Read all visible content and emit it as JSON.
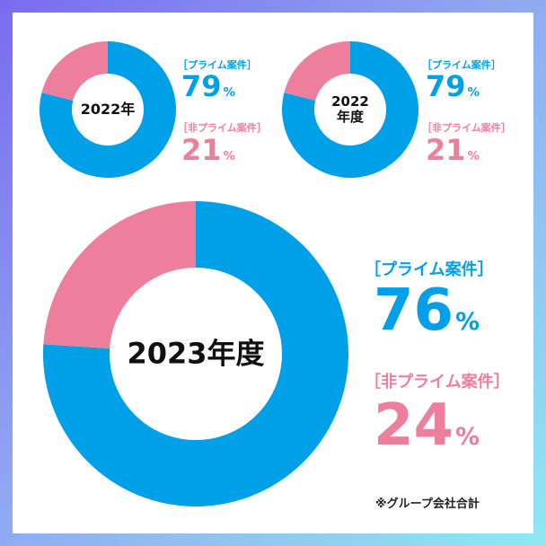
{
  "colors": {
    "prime": "#00a0e9",
    "non_prime": "#ee7f9c"
  },
  "chart_data": [
    {
      "type": "pie",
      "title": "2022年",
      "categories": [
        "プライム案件",
        "非プライム案件"
      ],
      "values": [
        79,
        21
      ],
      "colors": [
        "#00a0e9",
        "#ee7f9c"
      ]
    },
    {
      "type": "pie",
      "title": "2022年度",
      "categories": [
        "プライム案件",
        "非プライム案件"
      ],
      "values": [
        79,
        21
      ],
      "colors": [
        "#00a0e9",
        "#ee7f9c"
      ]
    },
    {
      "type": "pie",
      "title": "2023年度",
      "categories": [
        "プライム案件",
        "非プライム案件"
      ],
      "values": [
        76,
        24
      ],
      "colors": [
        "#00a0e9",
        "#ee7f9c"
      ]
    }
  ],
  "charts": [
    {
      "center_line1": "2022年",
      "center_line2": "",
      "prime_label": "［プライム案件］",
      "prime_value": "79",
      "prime_unit": "%",
      "non_prime_label": "［非プライム案件］",
      "non_prime_value": "21",
      "non_prime_unit": "%"
    },
    {
      "center_line1": "2022",
      "center_line2": "年度",
      "prime_label": "［プライム案件］",
      "prime_value": "79",
      "prime_unit": "%",
      "non_prime_label": "［非プライム案件］",
      "non_prime_value": "21",
      "non_prime_unit": "%"
    },
    {
      "center_line1": "2023年度",
      "center_line2": "",
      "prime_label": "［プライム案件］",
      "prime_value": "76",
      "prime_unit": "%",
      "non_prime_label": "［非プライム案件］",
      "non_prime_value": "24",
      "non_prime_unit": "%"
    }
  ],
  "footnote": "※グループ会社合計"
}
